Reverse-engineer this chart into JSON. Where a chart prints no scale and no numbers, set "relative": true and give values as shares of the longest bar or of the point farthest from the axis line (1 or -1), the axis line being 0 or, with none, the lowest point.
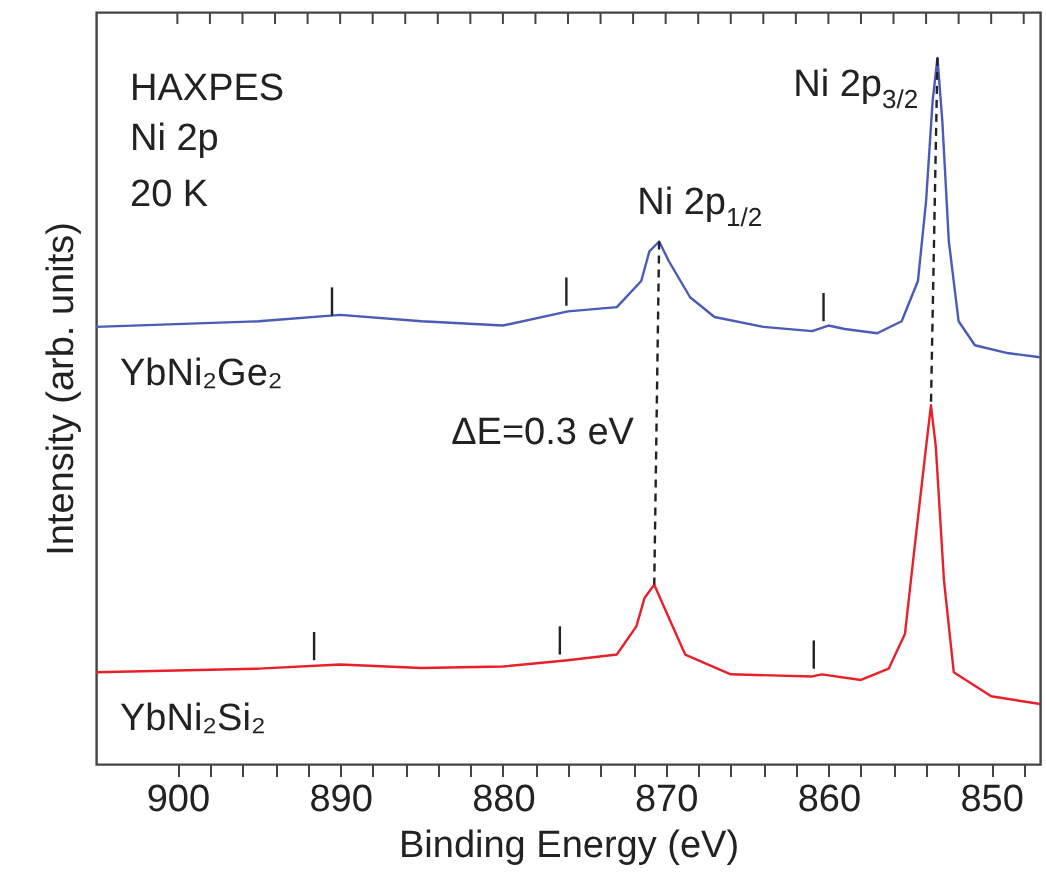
{
  "chart_data": {
    "type": "line",
    "relative": true,
    "xlabel": "Binding Energy (eV)",
    "ylabel": "Intensity (arb. units)",
    "xlim": [
      905,
      847
    ],
    "tick_labels": "x",
    "grid": false,
    "xticks": [
      900,
      {
        "value": 898,
        "label": null
      },
      {
        "value": 896,
        "label": null
      },
      {
        "value": 894,
        "label": null
      },
      {
        "value": 892,
        "label": null
      },
      890,
      {
        "value": 888,
        "label": null
      },
      {
        "value": 886,
        "label": null
      },
      {
        "value": 884,
        "label": null
      },
      {
        "value": 882,
        "label": null
      },
      880,
      {
        "value": 878,
        "label": null
      },
      {
        "value": 876,
        "label": null
      },
      {
        "value": 874,
        "label": null
      },
      {
        "value": 872,
        "label": null
      },
      870,
      {
        "value": 868,
        "label": null
      },
      {
        "value": 866,
        "label": null
      },
      {
        "value": 864,
        "label": null
      },
      {
        "value": 862,
        "label": null
      },
      860,
      {
        "value": 858,
        "label": null
      },
      {
        "value": 856,
        "label": null
      },
      {
        "value": 854,
        "label": null
      },
      {
        "value": 852,
        "label": null
      },
      850,
      {
        "value": 848,
        "label": null
      }
    ],
    "series": [
      {
        "name": "YbNi₂Ge₂",
        "color": "#4a5bb8",
        "x": [
          905,
          895,
          890,
          885,
          880,
          876,
          873,
          871.5,
          871.0,
          870.4,
          869.8,
          868.5,
          867,
          864,
          861,
          860,
          859,
          857,
          855.5,
          854.5,
          854,
          853.6,
          853.3,
          853.0,
          852.6,
          852,
          851,
          849,
          847
        ],
        "values": [
          0.619,
          0.627,
          0.636,
          0.627,
          0.621,
          0.641,
          0.647,
          0.684,
          0.726,
          0.74,
          0.712,
          0.661,
          0.633,
          0.619,
          0.613,
          0.621,
          0.616,
          0.61,
          0.627,
          0.684,
          0.797,
          0.938,
          1.0,
          0.91,
          0.74,
          0.627,
          0.593,
          0.582,
          0.576
        ]
      },
      {
        "name": "YbNi₂Si₂",
        "color": "#e8202a",
        "x": [
          905,
          895,
          890,
          885,
          880,
          876,
          873,
          871.8,
          871.3,
          870.7,
          869.9,
          868.8,
          866,
          861,
          860.4,
          858,
          856.3,
          855.3,
          854.7,
          854.0,
          853.7,
          853.4,
          852.9,
          852.3,
          850,
          847
        ],
        "values": [
          0.13,
          0.135,
          0.141,
          0.136,
          0.138,
          0.147,
          0.155,
          0.195,
          0.235,
          0.254,
          0.212,
          0.155,
          0.127,
          0.124,
          0.127,
          0.119,
          0.135,
          0.184,
          0.308,
          0.449,
          0.508,
          0.449,
          0.26,
          0.13,
          0.096,
          0.085
        ]
      },
      {
        "color": "#222222",
        "x": [
          890.5,
          890.5
        ],
        "values": [
          0.635,
          0.675
        ]
      },
      {
        "color": "#222222",
        "x": [
          876.1,
          876.1
        ],
        "values": [
          0.649,
          0.689
        ]
      },
      {
        "color": "#222222",
        "x": [
          860.3,
          860.3
        ],
        "values": [
          0.627,
          0.667
        ]
      },
      {
        "color": "#222222",
        "x": [
          891.6,
          891.6
        ],
        "values": [
          0.147,
          0.187
        ]
      },
      {
        "color": "#222222",
        "x": [
          876.5,
          876.5
        ],
        "values": [
          0.155,
          0.195
        ]
      },
      {
        "color": "#222222",
        "x": [
          860.9,
          860.9
        ],
        "values": [
          0.135,
          0.175
        ]
      },
      {
        "type": "line",
        "color": "#222222",
        "line_style": "dashed",
        "x": [
          870.4,
          870.7
        ],
        "values": [
          0.74,
          0.254
        ]
      },
      {
        "type": "line",
        "color": "#222222",
        "line_style": "dashed",
        "x": [
          853.3,
          853.7
        ],
        "values": [
          1.0,
          0.508
        ]
      }
    ],
    "annotations": [
      "HAXPES",
      "Ni 2p",
      "20 K",
      "Ni 2p$_{3/2}$",
      "Ni 2p$_{1/2}$",
      "ΔE=0.3 eV"
    ]
  }
}
